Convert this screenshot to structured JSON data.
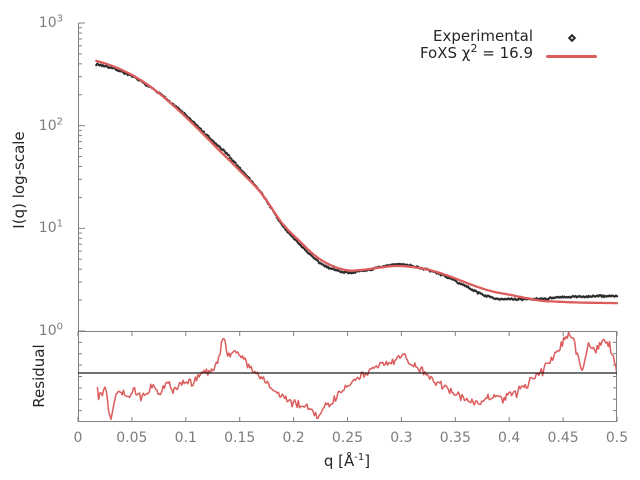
{
  "figure": {
    "background": "#ffffff"
  },
  "chart_data": {
    "type": "line",
    "description": "Small-angle X-ray scattering profile: experimental I(q) with FoXS model fit (top, log scale) and fit residuals (bottom)",
    "colors": {
      "experimental": "#2d2d2d",
      "fit_line": "#dc5c5c",
      "residual_line": "#dc5c5c",
      "residual_baseline": "#1c1c1c",
      "axis": "#808080",
      "tick_text": "#7d7d7d",
      "label_text": "#262626"
    },
    "x": {
      "label_prefix": "q [Å",
      "label_sup": "-1",
      "label_suffix": "]",
      "min": 0,
      "max": 0.5,
      "ticks": [
        0,
        0.05,
        0.1,
        0.15,
        0.2,
        0.25,
        0.3,
        0.35,
        0.4,
        0.45,
        0.5
      ],
      "tick_labels": [
        "0",
        "0.05",
        "0.1",
        "0.15",
        "0.2",
        "0.25",
        "0.3",
        "0.35",
        "0.4",
        "0.45",
        "0.5"
      ]
    },
    "main_panel": {
      "ylabel": "I(q) log-scale",
      "yscale": "log",
      "ylim": [
        1,
        1000
      ],
      "ytick_exponents": [
        0,
        1,
        2,
        3
      ],
      "minor_tick_multipliers": [
        2,
        3,
        4,
        5,
        6,
        7,
        8,
        9
      ],
      "series": [
        {
          "name": "Experimental",
          "style": "scatter-diamond",
          "q_range": [
            0.017,
            0.5
          ],
          "ratio_to_fit_anchors": {
            "q": [
              0.017,
              0.03,
              0.05,
              0.07,
              0.09,
              0.11,
              0.125,
              0.135,
              0.15,
              0.165,
              0.18,
              0.2,
              0.215,
              0.225,
              0.24,
              0.26,
              0.28,
              0.3,
              0.32,
              0.34,
              0.36,
              0.38,
              0.4,
              0.42,
              0.44,
              0.46,
              0.48,
              0.5
            ],
            "ratio": [
              0.93,
              0.95,
              0.97,
              0.99,
              1.03,
              1.05,
              1.06,
              1.09,
              1.06,
              1.02,
              0.98,
              0.94,
              0.93,
              0.92,
              0.94,
              0.97,
              1.0,
              1.04,
              1.0,
              0.97,
              0.92,
              0.87,
              0.9,
              1.0,
              1.08,
              1.13,
              1.16,
              1.17
            ]
          },
          "noise_log10": 0.011,
          "points_rendered": 480
        },
        {
          "name": "FoXS",
          "chi2": 16.9,
          "style": "line",
          "anchors": {
            "q": [
              0.017,
              0.03,
              0.05,
              0.07,
              0.09,
              0.11,
              0.13,
              0.15,
              0.17,
              0.19,
              0.205,
              0.22,
              0.235,
              0.25,
              0.265,
              0.28,
              0.295,
              0.31,
              0.325,
              0.34,
              0.355,
              0.37,
              0.385,
              0.4,
              0.415,
              0.43,
              0.445,
              0.46,
              0.48,
              0.5
            ],
            "I": [
              428,
              388,
              312,
              228,
              152,
              96,
              59,
              36.5,
              22,
              11.0,
              7.6,
              5.4,
              4.35,
              3.9,
              3.95,
              4.15,
              4.3,
              4.2,
              3.95,
              3.55,
              3.1,
              2.7,
              2.42,
              2.26,
              2.1,
              1.97,
              1.93,
              1.9,
              1.88,
              1.87
            ]
          }
        }
      ]
    },
    "residual_panel": {
      "ylabel": "Residual",
      "baseline": 1.0,
      "value_range": [
        0,
        1.857
      ],
      "q_range": [
        0.018,
        0.5
      ],
      "anchors": {
        "q": [
          0.018,
          0.022,
          0.026,
          0.03,
          0.034,
          0.04,
          0.046,
          0.052,
          0.058,
          0.064,
          0.07,
          0.076,
          0.082,
          0.088,
          0.094,
          0.1,
          0.106,
          0.112,
          0.118,
          0.124,
          0.13,
          0.135,
          0.139,
          0.144,
          0.15,
          0.156,
          0.162,
          0.168,
          0.175,
          0.182,
          0.19,
          0.198,
          0.206,
          0.214,
          0.222,
          0.228,
          0.235,
          0.243,
          0.252,
          0.262,
          0.272,
          0.282,
          0.292,
          0.3,
          0.308,
          0.316,
          0.324,
          0.332,
          0.34,
          0.348,
          0.356,
          0.364,
          0.372,
          0.38,
          0.388,
          0.394,
          0.4,
          0.408,
          0.416,
          0.424,
          0.432,
          0.44,
          0.448,
          0.456,
          0.462,
          0.468,
          0.474,
          0.48,
          0.486,
          0.492,
          0.497,
          0.5
        ],
        "value": [
          0.72,
          0.55,
          0.7,
          0.08,
          0.5,
          0.62,
          0.48,
          0.63,
          0.51,
          0.6,
          0.72,
          0.56,
          0.82,
          0.66,
          0.76,
          0.86,
          0.78,
          0.94,
          1.02,
          1.06,
          1.28,
          1.72,
          1.35,
          1.46,
          1.38,
          1.22,
          1.05,
          0.92,
          0.82,
          0.65,
          0.52,
          0.42,
          0.35,
          0.3,
          0.12,
          0.3,
          0.42,
          0.58,
          0.78,
          0.92,
          1.05,
          1.18,
          1.22,
          1.35,
          1.18,
          1.1,
          0.95,
          0.82,
          0.72,
          0.6,
          0.54,
          0.42,
          0.36,
          0.48,
          0.58,
          0.46,
          0.56,
          0.66,
          0.78,
          0.92,
          1.1,
          1.3,
          1.55,
          1.78,
          1.52,
          1.1,
          1.55,
          1.48,
          1.62,
          1.55,
          1.3,
          1.02
        ]
      },
      "noise": 0.09,
      "points_rendered": 420
    },
    "legend": {
      "position": "top-right",
      "entries": [
        {
          "label": "Experimental",
          "marker": "diamond"
        },
        {
          "label_prefix": "FoXS χ",
          "label_sup": "2",
          "label_suffix": " = 16.9",
          "marker": "red-line"
        }
      ]
    }
  }
}
